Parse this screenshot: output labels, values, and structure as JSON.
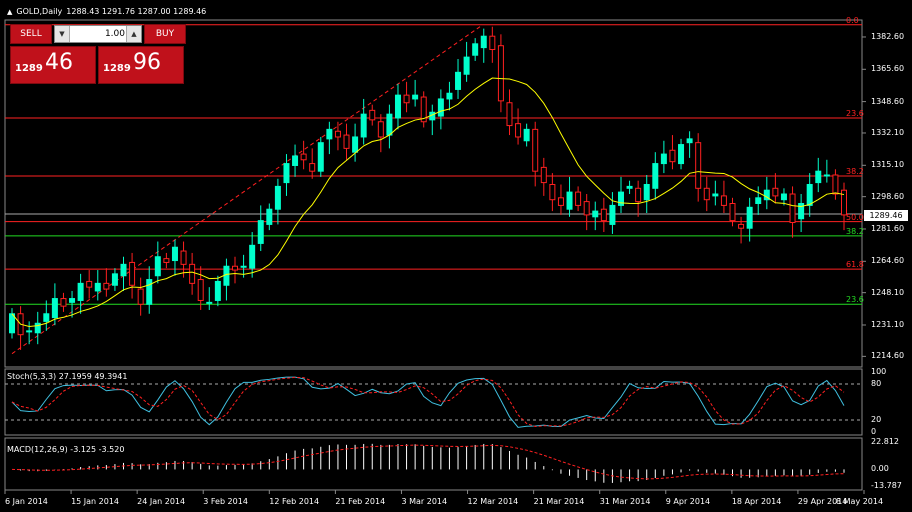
{
  "header": {
    "symbol": "GOLD,Daily",
    "ohlc": "1288.43 1291.76 1287.00 1289.46"
  },
  "trade_panel": {
    "sell_label": "SELL",
    "buy_label": "BUY",
    "lot": "1.00",
    "sell_small": "1289",
    "sell_big": "46",
    "buy_small": "1289",
    "buy_big": "96"
  },
  "price_axis": [
    "1382.60",
    "1365.60",
    "1348.60",
    "1332.10",
    "1315.10",
    "1298.60",
    "1281.60",
    "1264.60",
    "1248.10",
    "1231.10",
    "1214.60"
  ],
  "current_price": "1289.46",
  "fib_levels": [
    {
      "label": "0.0",
      "color": "#ff2222",
      "price": 1389
    },
    {
      "label": "23.6",
      "color": "#ff2222",
      "price": 1340
    },
    {
      "label": "38.2",
      "color": "#ff2222",
      "price": 1309.5
    },
    {
      "label": "50.0",
      "color": "#ff2222",
      "price": 1285.5
    },
    {
      "label": "61.8",
      "color": "#ff2222",
      "price": 1260.5
    },
    {
      "label": "23.6",
      "color": "#22dd22",
      "price": 1242
    },
    {
      "label": "38.2",
      "color": "#22dd22",
      "price": 1278
    }
  ],
  "stoch": {
    "title": "Stoch(5,3,3) 27.1959 49.3941",
    "levels": [
      "100",
      "80",
      "20",
      "0"
    ]
  },
  "macd": {
    "title": "MACD(12,26,9) -3.125 -3.520",
    "levels": [
      "22.812",
      "0.00",
      "-13.787"
    ]
  },
  "dates": [
    "6 Jan 2014",
    "15 Jan 2014",
    "24 Jan 2014",
    "3 Feb 2014",
    "12 Feb 2014",
    "21 Feb 2014",
    "3 Mar 2014",
    "12 Mar 2014",
    "21 Mar 2014",
    "31 Mar 2014",
    "9 Apr 2014",
    "18 Apr 2014",
    "29 Apr 2014",
    "8 May 2014"
  ],
  "colors": {
    "bull": "#00ffcc",
    "bear": "#ff2020",
    "ma": "#ffff00",
    "signal": "#ff2020",
    "stoch": "#40c0e0"
  },
  "chart_data": {
    "type": "candlestick",
    "close": [
      1237,
      1226,
      1228,
      1232,
      1237,
      1245,
      1241,
      1245,
      1253,
      1251,
      1253,
      1250,
      1258,
      1263,
      1252,
      1242,
      1255,
      1267,
      1264,
      1272,
      1263,
      1253,
      1244,
      1243,
      1254,
      1262,
      1260,
      1262,
      1273,
      1286,
      1292,
      1304,
      1316,
      1320,
      1318,
      1312,
      1327,
      1334,
      1330,
      1324,
      1330,
      1342,
      1339,
      1330,
      1342,
      1352,
      1348,
      1352,
      1338,
      1343,
      1350,
      1353,
      1364,
      1372,
      1379,
      1383,
      1376,
      1349,
      1336,
      1330,
      1334,
      1312,
      1306,
      1297,
      1294,
      1301,
      1294,
      1289,
      1291,
      1286,
      1294,
      1301,
      1304,
      1296,
      1305,
      1316,
      1321,
      1317,
      1326,
      1329,
      1303,
      1297,
      1300,
      1294,
      1286,
      1282,
      1293,
      1298,
      1302,
      1299,
      1300,
      1285,
      1295,
      1305,
      1312,
      1310,
      1300,
      1289
    ]
  }
}
